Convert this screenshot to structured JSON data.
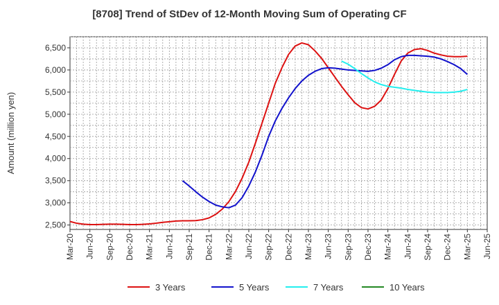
{
  "chart_data": {
    "type": "line",
    "title": "[8708]  Trend of StDev of 12-Month Moving Sum of Operating CF",
    "xlabel": "",
    "ylabel": "Amount (million yen)",
    "ylim": [
      2400,
      6750
    ],
    "yticks": [
      2500,
      3000,
      3500,
      4000,
      4500,
      5000,
      5500,
      6000,
      6500
    ],
    "ytick_labels": [
      "2,500",
      "3,000",
      "3,500",
      "4,000",
      "4,500",
      "5,000",
      "5,500",
      "6,000",
      "6,500"
    ],
    "xticks": [
      "Mar-20",
      "Jun-20",
      "Sep-20",
      "Dec-20",
      "Mar-21",
      "Jun-21",
      "Sep-21",
      "Dec-21",
      "Mar-22",
      "Jun-22",
      "Sep-22",
      "Dec-22",
      "Mar-23",
      "Jun-23",
      "Sep-23",
      "Dec-23",
      "Mar-24",
      "Jun-24",
      "Sep-24",
      "Dec-24",
      "Mar-25",
      "Jun-25"
    ],
    "grid": true,
    "legend_position": "bottom",
    "series": [
      {
        "name": "3 Years",
        "color": "#dd1111",
        "x": [
          "Mar-20",
          "Apr-20",
          "May-20",
          "Jun-20",
          "Jul-20",
          "Aug-20",
          "Sep-20",
          "Oct-20",
          "Nov-20",
          "Dec-20",
          "Jan-21",
          "Feb-21",
          "Mar-21",
          "Apr-21",
          "May-21",
          "Jun-21",
          "Jul-21",
          "Aug-21",
          "Sep-21",
          "Oct-21",
          "Nov-21",
          "Dec-21",
          "Jan-22",
          "Feb-22",
          "Mar-22",
          "Apr-22",
          "May-22",
          "Jun-22",
          "Jul-22",
          "Aug-22",
          "Sep-22",
          "Oct-22",
          "Nov-22",
          "Dec-22",
          "Jan-23",
          "Feb-23",
          "Mar-23",
          "Apr-23",
          "May-23",
          "Jun-23",
          "Jul-23",
          "Aug-23",
          "Sep-23",
          "Oct-23",
          "Nov-23",
          "Dec-23",
          "Jan-24",
          "Feb-24",
          "Mar-24",
          "Apr-24",
          "May-24",
          "Jun-24",
          "Jul-24",
          "Aug-24",
          "Sep-24",
          "Oct-24",
          "Nov-24",
          "Dec-24",
          "Jan-25",
          "Feb-25",
          "Mar-25"
        ],
        "values": [
          2580,
          2540,
          2520,
          2510,
          2510,
          2515,
          2520,
          2520,
          2515,
          2510,
          2510,
          2515,
          2525,
          2540,
          2560,
          2575,
          2590,
          2595,
          2595,
          2600,
          2620,
          2660,
          2740,
          2860,
          3030,
          3260,
          3560,
          3920,
          4350,
          4800,
          5250,
          5700,
          6050,
          6350,
          6540,
          6610,
          6570,
          6430,
          6260,
          6050,
          5840,
          5630,
          5440,
          5260,
          5150,
          5120,
          5180,
          5320,
          5580,
          5900,
          6200,
          6380,
          6460,
          6480,
          6440,
          6380,
          6340,
          6310,
          6300,
          6300,
          6310
        ]
      },
      {
        "name": "5 Years",
        "color": "#1111cc",
        "x": [
          "Aug-21",
          "Sep-21",
          "Oct-21",
          "Nov-21",
          "Dec-21",
          "Jan-22",
          "Feb-22",
          "Mar-22",
          "Apr-22",
          "May-22",
          "Jun-22",
          "Jul-22",
          "Aug-22",
          "Sep-22",
          "Oct-22",
          "Nov-22",
          "Dec-22",
          "Jan-23",
          "Feb-23",
          "Mar-23",
          "Apr-23",
          "May-23",
          "Jun-23",
          "Jul-23",
          "Aug-23",
          "Sep-23",
          "Oct-23",
          "Nov-23",
          "Dec-23",
          "Jan-24",
          "Feb-24",
          "Mar-24",
          "Apr-24",
          "May-24",
          "Jun-24",
          "Jul-24",
          "Aug-24",
          "Sep-24",
          "Oct-24",
          "Nov-24",
          "Dec-24",
          "Jan-25",
          "Feb-25",
          "Mar-25"
        ],
        "values": [
          3500,
          3380,
          3250,
          3130,
          3030,
          2950,
          2910,
          2890,
          2950,
          3120,
          3380,
          3700,
          4080,
          4500,
          4850,
          5130,
          5370,
          5580,
          5750,
          5880,
          5970,
          6030,
          6050,
          6040,
          6020,
          6000,
          5990,
          5980,
          5970,
          5990,
          6040,
          6120,
          6230,
          6300,
          6330,
          6330,
          6320,
          6310,
          6290,
          6250,
          6190,
          6120,
          6030,
          5900
        ]
      },
      {
        "name": "7 Years",
        "color": "#22eeee",
        "x": [
          "Aug-23",
          "Sep-23",
          "Oct-23",
          "Nov-23",
          "Dec-23",
          "Jan-24",
          "Feb-24",
          "Mar-24",
          "Apr-24",
          "May-24",
          "Jun-24",
          "Jul-24",
          "Aug-24",
          "Sep-24",
          "Oct-24",
          "Nov-24",
          "Dec-24",
          "Jan-25",
          "Feb-25",
          "Mar-25"
        ],
        "values": [
          6200,
          6130,
          6030,
          5920,
          5820,
          5730,
          5670,
          5630,
          5610,
          5590,
          5560,
          5540,
          5520,
          5500,
          5490,
          5490,
          5490,
          5500,
          5520,
          5560
        ]
      },
      {
        "name": "10 Years",
        "color": "#228822",
        "x": [],
        "values": []
      }
    ]
  }
}
